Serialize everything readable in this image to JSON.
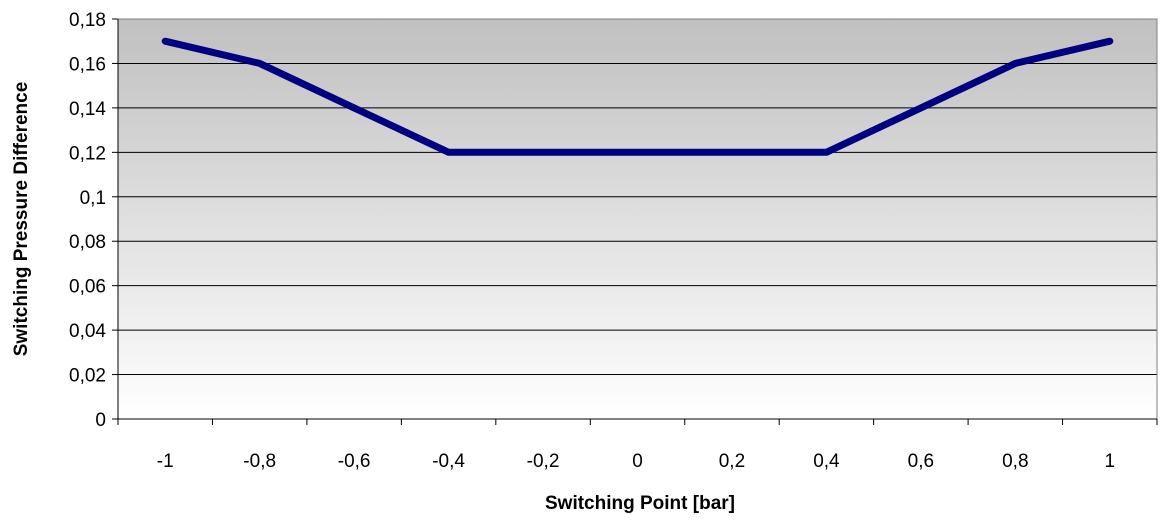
{
  "chart_data": {
    "type": "line",
    "title": "",
    "xlabel": "Switching Point [bar]",
    "ylabel": "Switching Pressure Difference",
    "x_tick_labels": [
      "-1",
      "-0,8",
      "-0,6",
      "-0,4",
      "-0,2",
      "0",
      "0,2",
      "0,4",
      "0,6",
      "0,8",
      "1"
    ],
    "y_tick_labels": [
      "0",
      "0,02",
      "0,04",
      "0,06",
      "0,08",
      "0,1",
      "0,12",
      "0,14",
      "0,16",
      "0,18"
    ],
    "ylim": [
      0,
      0.18
    ],
    "grid": "horizontal",
    "legend": "none",
    "series": [
      {
        "color": "#000080",
        "x": [
          -1,
          -0.8,
          -0.6,
          -0.4,
          -0.2,
          0,
          0.2,
          0.4,
          0.6,
          0.8,
          1
        ],
        "values": [
          0.17,
          0.16,
          0.14,
          0.12,
          0.12,
          0.12,
          0.12,
          0.12,
          0.14,
          0.16,
          0.17
        ]
      }
    ]
  }
}
